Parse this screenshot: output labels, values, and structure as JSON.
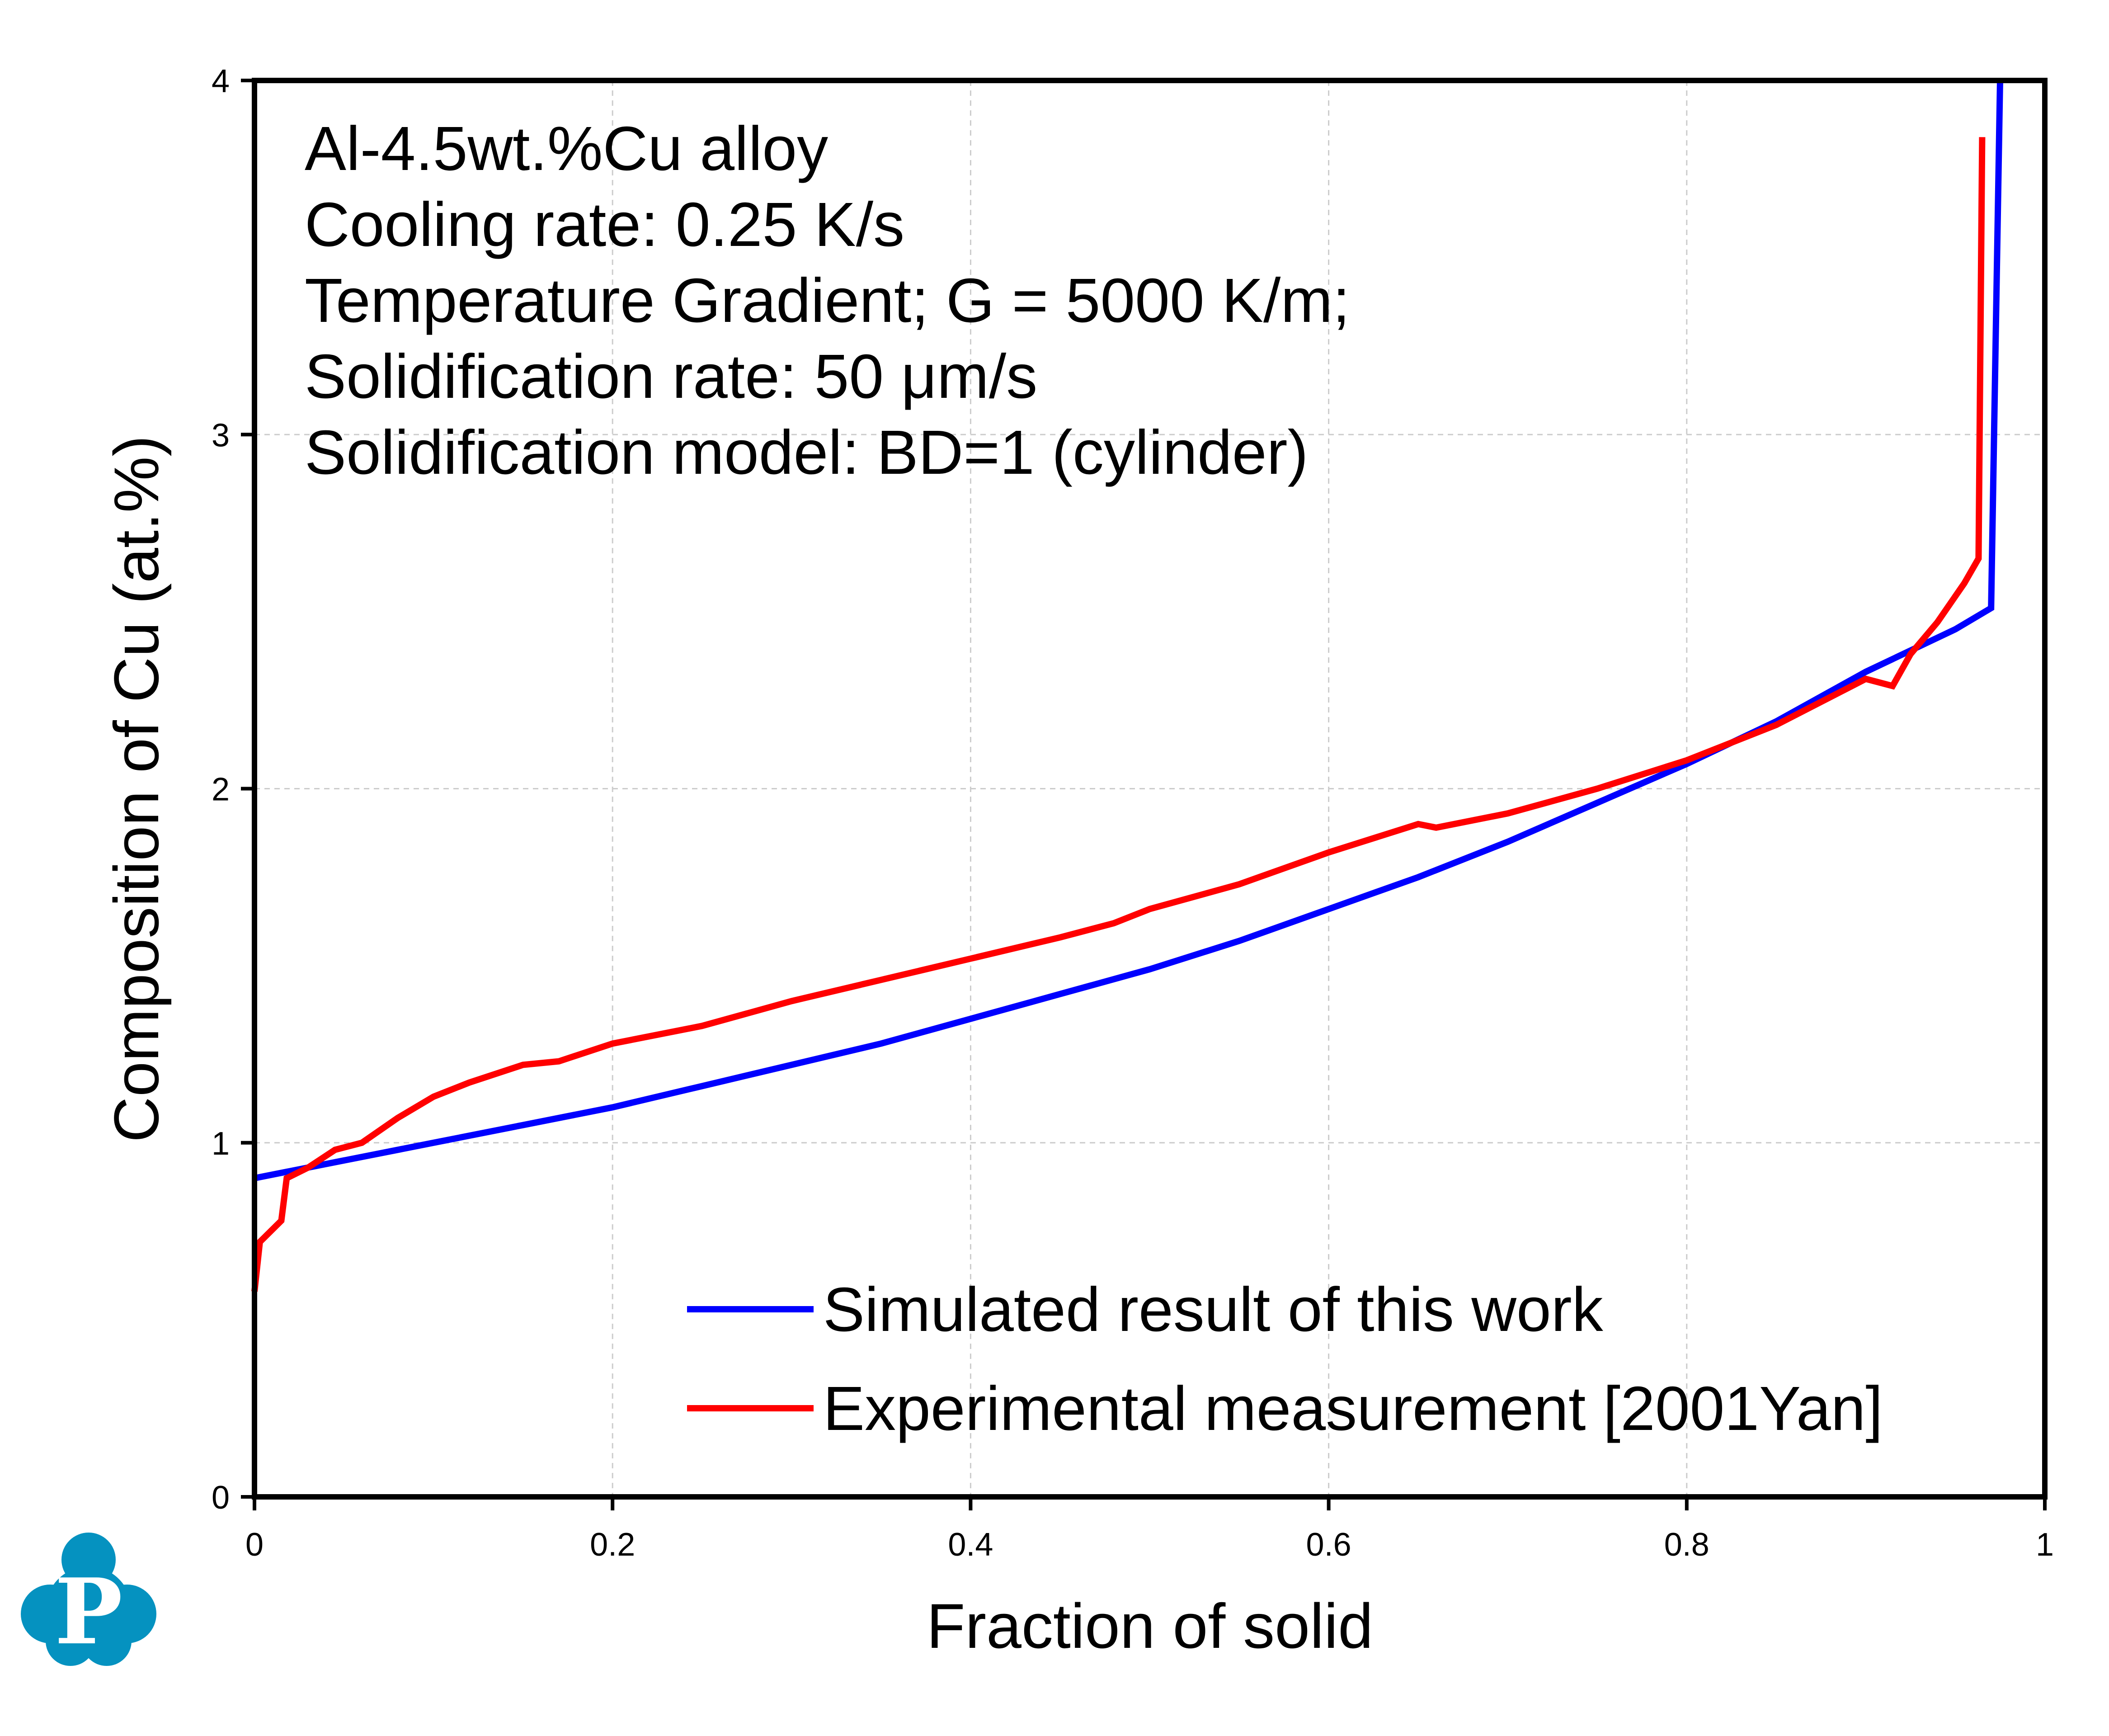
{
  "chart_data": {
    "type": "line",
    "title": "",
    "xlabel": "Fraction of solid",
    "ylabel": "Composition of Cu (at.%)",
    "xlim": [
      0,
      1
    ],
    "ylim": [
      0,
      4
    ],
    "xticks": [
      "0",
      "0.2",
      "0.4",
      "0.6",
      "0.8",
      "1"
    ],
    "yticks": [
      "0",
      "1",
      "2",
      "3",
      "4"
    ],
    "grid": true,
    "legend_placement": "bottom-right",
    "annotations": [
      "Al-4.5wt.%Cu alloy",
      "Cooling rate: 0.25 K/s",
      "Temperature Gradient; G = 5000 K/m;",
      "Solidification rate: 50 μm/s",
      "Solidification model: BD=1 (cylinder)"
    ],
    "series": [
      {
        "name": "Simulated result of this work",
        "color": "#0000ff",
        "x": [
          0,
          0.05,
          0.1,
          0.15,
          0.2,
          0.25,
          0.3,
          0.35,
          0.4,
          0.45,
          0.5,
          0.55,
          0.6,
          0.65,
          0.7,
          0.75,
          0.8,
          0.85,
          0.9,
          0.95,
          0.97,
          0.975
        ],
        "y": [
          0.9,
          0.95,
          1.0,
          1.05,
          1.1,
          1.16,
          1.22,
          1.28,
          1.35,
          1.42,
          1.49,
          1.57,
          1.66,
          1.75,
          1.85,
          1.96,
          2.07,
          2.19,
          2.33,
          2.45,
          2.51,
          4.0
        ]
      },
      {
        "name": "Experimental measurement [2001Yan]",
        "color": "#ff0000",
        "x": [
          0,
          0.003,
          0.015,
          0.018,
          0.03,
          0.045,
          0.06,
          0.08,
          0.1,
          0.12,
          0.15,
          0.17,
          0.2,
          0.25,
          0.3,
          0.35,
          0.4,
          0.45,
          0.48,
          0.5,
          0.55,
          0.6,
          0.65,
          0.66,
          0.7,
          0.75,
          0.8,
          0.85,
          0.9,
          0.915,
          0.925,
          0.94,
          0.955,
          0.963,
          0.965
        ],
        "y": [
          0.58,
          0.72,
          0.78,
          0.9,
          0.93,
          0.98,
          1.0,
          1.07,
          1.13,
          1.17,
          1.22,
          1.23,
          1.28,
          1.33,
          1.4,
          1.46,
          1.52,
          1.58,
          1.62,
          1.66,
          1.73,
          1.82,
          1.9,
          1.89,
          1.93,
          2.0,
          2.08,
          2.18,
          2.31,
          2.29,
          2.38,
          2.47,
          2.58,
          2.65,
          3.84
        ]
      }
    ]
  },
  "logo": {
    "letter": "P",
    "color": "#0592c0"
  }
}
